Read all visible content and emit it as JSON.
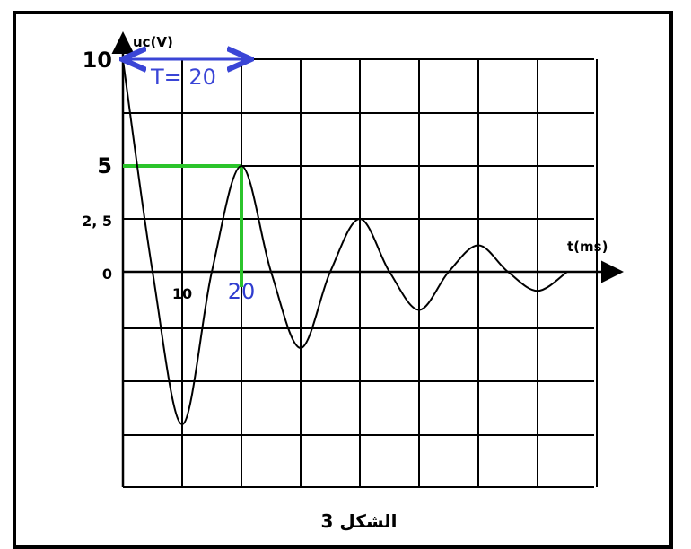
{
  "chart_data": {
    "type": "line",
    "ylabel": "uc(V)",
    "xlabel": "t(ms)",
    "caption": "الشكل 3",
    "grid": true,
    "xlim": [
      0,
      80
    ],
    "ylim": [
      -10,
      10
    ],
    "y_tick_labels": [
      {
        "value": 10,
        "label": "10"
      },
      {
        "value": 5,
        "label": "5"
      },
      {
        "value": 2.5,
        "label": "2, 5"
      },
      {
        "value": 0,
        "label": "0"
      }
    ],
    "x_tick_labels": [
      {
        "value": 10,
        "label": "10"
      }
    ],
    "series": [
      {
        "color": "#000000",
        "points": [
          [
            0,
            10
          ],
          [
            5,
            0
          ],
          [
            10,
            -7.2
          ],
          [
            15,
            0
          ],
          [
            20,
            5
          ],
          [
            25,
            0
          ],
          [
            30,
            -3.6
          ],
          [
            35,
            0
          ],
          [
            40,
            2.5
          ],
          [
            45,
            0
          ],
          [
            50,
            -1.8
          ],
          [
            55,
            0
          ],
          [
            60,
            1.25
          ],
          [
            65,
            0
          ],
          [
            70,
            -0.9
          ],
          [
            75,
            0
          ]
        ]
      }
    ],
    "annotations": {
      "period_label": "T= 20",
      "period_color": "#3a45d6",
      "marker_label": "20",
      "marker_color": "#2f3ccf",
      "marker_x": 20,
      "marker_y": 5,
      "guide_color": "#2bc42b"
    }
  }
}
